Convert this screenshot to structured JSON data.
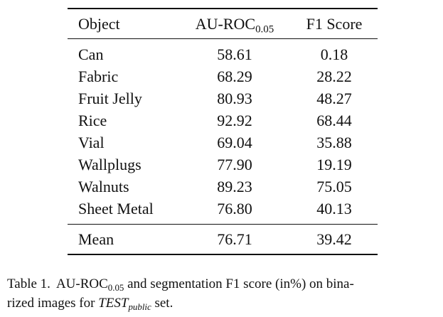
{
  "table": {
    "header": {
      "object": "Object",
      "auroc": {
        "main": "AU-ROC",
        "sub": "0.05"
      },
      "f1": "F1 Score"
    },
    "rows": [
      [
        "Can",
        "58.61",
        "0.18"
      ],
      [
        "Fabric",
        "68.29",
        "28.22"
      ],
      [
        "Fruit Jelly",
        "80.93",
        "48.27"
      ],
      [
        "Rice",
        "92.92",
        "68.44"
      ],
      [
        "Vial",
        "69.04",
        "35.88"
      ],
      [
        "Wallplugs",
        "77.90",
        "19.19"
      ],
      [
        "Walnuts",
        "89.23",
        "75.05"
      ],
      [
        "Sheet Metal",
        "76.80",
        "40.13"
      ]
    ],
    "mean": [
      "Mean",
      "76.71",
      "39.42"
    ]
  },
  "caption": {
    "label": "Table 1.",
    "line1": {
      "metric": "AU-ROC",
      "metric_sub": "0.05",
      "rest": " and segmentation F1 score (in%) on bina-"
    },
    "line2": {
      "start": "rized images for ",
      "set": "TEST",
      "set_sub": "public",
      "end": " set."
    }
  }
}
